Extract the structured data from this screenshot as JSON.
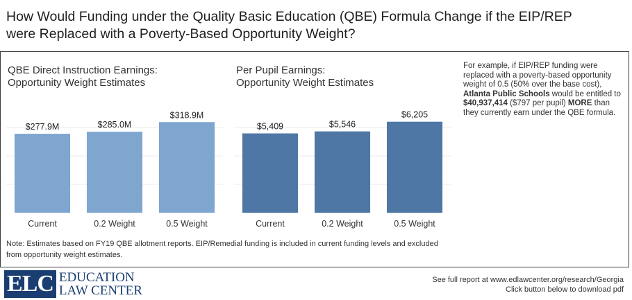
{
  "title_line1": "How Would Funding under the Quality Basic Education (QBE) Formula Change if the EIP/REP",
  "title_line2": "were Replaced with a Poverty-Based Opportunity Weight?",
  "chart_data": [
    {
      "type": "bar",
      "title_line1": "QBE Direct Instruction Earnings:",
      "title_line2": "Opportunity Weight Estimates",
      "categories": [
        "Current",
        "0.2 Weight",
        "0.5 Weight"
      ],
      "values": [
        277.9,
        285.0,
        318.9
      ],
      "unit": "$M",
      "labels": [
        "$277.9M",
        "$285.0M",
        "$318.9M"
      ],
      "ylim": [
        0,
        400
      ],
      "grid": true,
      "color": "#7ea6cf"
    },
    {
      "type": "bar",
      "title_line1": "Per Pupil Earnings:",
      "title_line2": "Opportunity Weight Estimates",
      "categories": [
        "Current",
        "0.2 Weight",
        "0.5 Weight"
      ],
      "values": [
        5409,
        5546,
        6205
      ],
      "unit": "$",
      "labels": [
        "$5,409",
        "$5,546",
        "$6,205"
      ],
      "ylim": [
        0,
        7750
      ],
      "grid": true,
      "color": "#4e77a6"
    }
  ],
  "side_note": {
    "p1": "For example, if EIP/REP funding were replaced with a poverty-based opportunity weight of 0.5 (50% over the base cost), ",
    "district": "Atlanta Public Schools",
    "p2": " would be entitled to ",
    "amount": "$40,937,414",
    "p3": " ($797 per pupil) ",
    "more": "MORE",
    "p4": " than they currently earn under the QBE formula."
  },
  "note": "Note: Estimates based on FY19 QBE allotment reports. EIP/Remedial funding is included in current funding levels and excluded from opportunity weight estimates.",
  "logo": {
    "abbr": "ELC",
    "line1": "EDUCATION",
    "line2": "LAW CENTER"
  },
  "footer": {
    "line1": "See full report at www.edlawcenter.org/research/Georgia",
    "line2": "Click button below to download pdf"
  }
}
